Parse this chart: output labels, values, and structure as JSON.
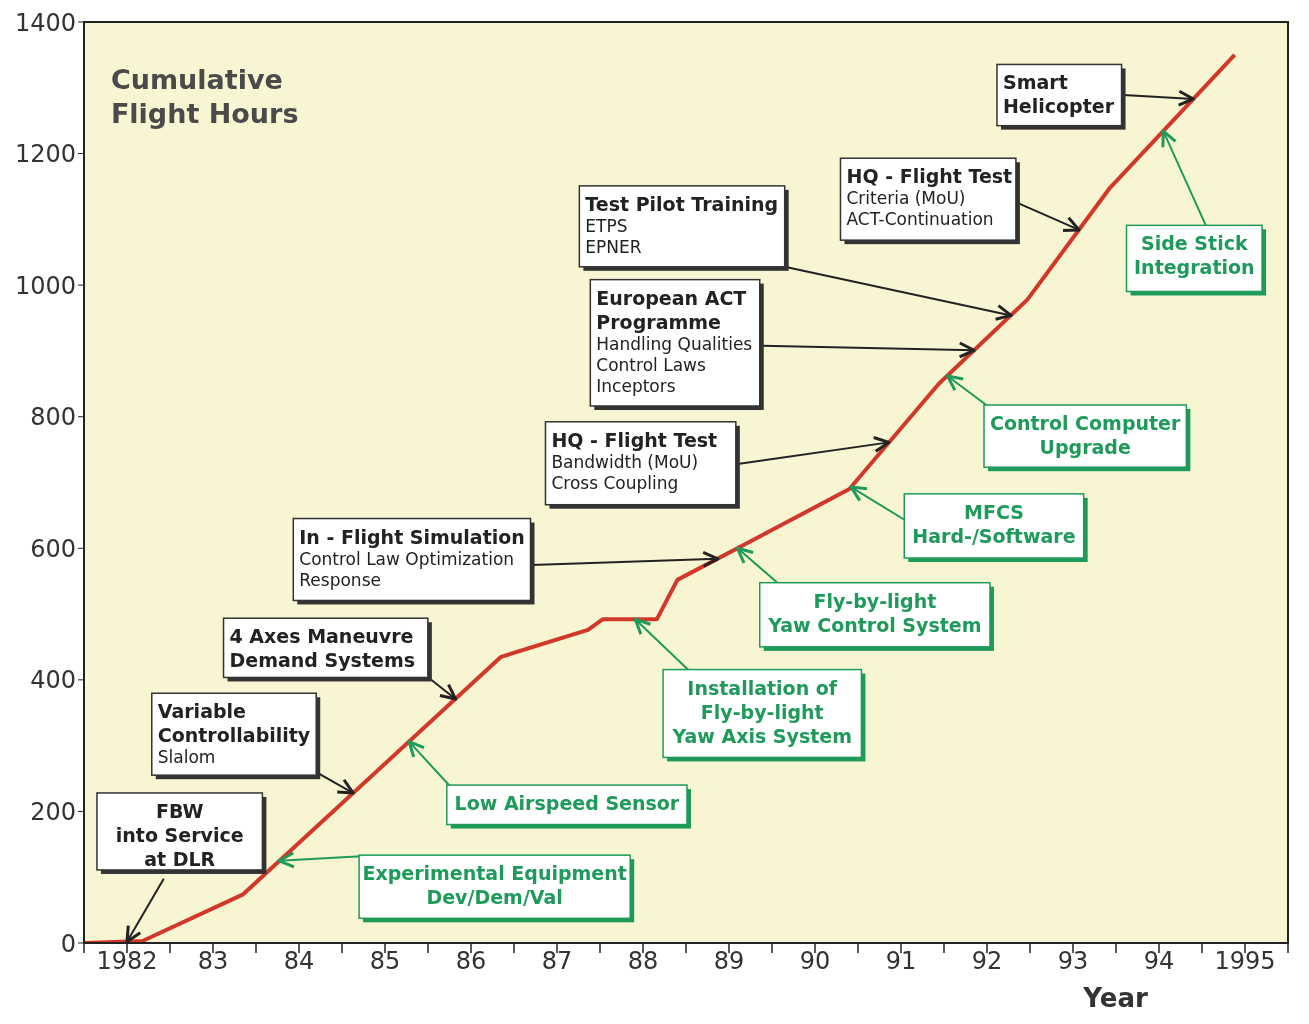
{
  "chart_data": {
    "type": "line",
    "title": "Cumulative Flight Hours",
    "xlabel": "Year",
    "x": [
      1981.5,
      1982.18,
      1983.35,
      1986.35,
      1987.36,
      1987.53,
      1988.16,
      1988.4,
      1990.4,
      1991.44,
      1992.47,
      1993.43,
      1994.88
    ],
    "series": [
      {
        "color": "#d2382a",
        "values": [
          0,
          3,
          74,
          435,
          476,
          492,
          492,
          552,
          690,
          850,
          978,
          1148,
          1350
        ]
      }
    ],
    "xlim": [
      1981.5,
      1995.5
    ],
    "xticks": [
      {
        "value": 1981.5,
        "label": null
      },
      {
        "value": 1982,
        "label": "1982"
      },
      {
        "value": 1982.5,
        "label": null
      },
      {
        "value": 1983,
        "label": "83"
      },
      {
        "value": 1983.5,
        "label": null
      },
      {
        "value": 1984,
        "label": "84"
      },
      {
        "value": 1984.5,
        "label": null
      },
      {
        "value": 1985,
        "label": "85"
      },
      {
        "value": 1985.5,
        "label": null
      },
      {
        "value": 1986,
        "label": "86"
      },
      {
        "value": 1986.5,
        "label": null
      },
      {
        "value": 1987,
        "label": "87"
      },
      {
        "value": 1987.5,
        "label": null
      },
      {
        "value": 1988,
        "label": "88"
      },
      {
        "value": 1988.5,
        "label": null
      },
      {
        "value": 1989,
        "label": "89"
      },
      {
        "value": 1989.5,
        "label": null
      },
      {
        "value": 1990,
        "label": "90"
      },
      {
        "value": 1990.5,
        "label": null
      },
      {
        "value": 1991,
        "label": "91"
      },
      {
        "value": 1991.5,
        "label": null
      },
      {
        "value": 1992,
        "label": "92"
      },
      {
        "value": 1992.5,
        "label": null
      },
      {
        "value": 1993,
        "label": "93"
      },
      {
        "value": 1993.5,
        "label": null
      },
      {
        "value": 1994,
        "label": "94"
      },
      {
        "value": 1994.5,
        "label": null
      },
      {
        "value": 1995,
        "label": "1995"
      },
      {
        "value": 1995.5,
        "label": null
      }
    ],
    "ylim": [
      0,
      1400
    ],
    "yticks": [
      0,
      200,
      400,
      600,
      800,
      1000,
      1200,
      1400
    ],
    "annotations": [
      {
        "text": "FBW\ninto Service\nat DLR",
        "x": 1982.0,
        "y": 2
      },
      {
        "text": "Variable\nControllability\nSlalom",
        "x": 1984.63,
        "y": 228
      },
      {
        "text": "4 Axes Maneuvre\nDemand Systems",
        "x": 1985.82,
        "y": 371
      },
      {
        "text": "In - Flight Simulation\nControl Law Optimization\nResponse",
        "x": 1988.87,
        "y": 584
      },
      {
        "text": "HQ - Flight Test\nBandwidth (MoU)\nCross Coupling",
        "x": 1990.86,
        "y": 761
      },
      {
        "text": "European ACT\nProgramme\nHandling Qualities\nControl Laws\nInceptors",
        "x": 1991.85,
        "y": 901
      },
      {
        "text": "Test Pilot Training\nETPS\nEPNER",
        "x": 1992.28,
        "y": 954
      },
      {
        "text": "HQ - Flight Test\nCriteria (MoU)\nACT-Continuation",
        "x": 1993.07,
        "y": 1084
      },
      {
        "text": "Smart\nHelicopter",
        "x": 1994.4,
        "y": 1283
      },
      {
        "text": "Experimental Equipment\nDev/Dem/Val",
        "x": 1983.77,
        "y": 125
      },
      {
        "text": "Low Airspeed Sensor",
        "x": 1985.28,
        "y": 306
      },
      {
        "text": "Installation of\nFly-by-light\nYaw Axis System",
        "x": 1987.91,
        "y": 492
      },
      {
        "text": "Fly-by-light\nYaw Control System",
        "x": 1989.1,
        "y": 600
      },
      {
        "text": "MFCS\nHard-/Software",
        "x": 1990.42,
        "y": 693
      },
      {
        "text": "Control Computer\nUpgrade",
        "x": 1991.54,
        "y": 862
      },
      {
        "text": "Side Stick\nIntegration",
        "x": 1994.05,
        "y": 1234
      }
    ]
  }
}
